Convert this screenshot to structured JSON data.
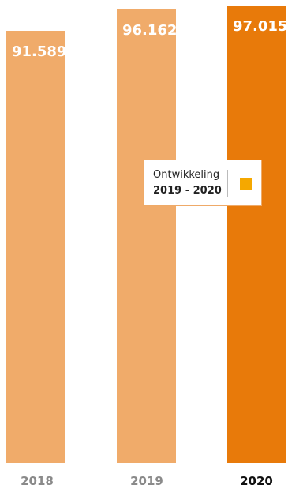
{
  "chart_data": {
    "type": "bar",
    "categories": [
      "2018",
      "2019",
      "2020"
    ],
    "values": [
      91.589,
      96.162,
      97.015
    ],
    "value_labels": [
      "91.589",
      "96.162",
      "97.015"
    ],
    "bar_colors": [
      "#f0ab6a",
      "#f0ab6a",
      "#e87a0a"
    ],
    "highlight_category": "2020",
    "title": "",
    "xlabel": "",
    "ylabel": "",
    "ylim": [
      0,
      100
    ],
    "grid": false,
    "legend": {
      "placement": "center-right",
      "line1": "Ontwikkeling",
      "line2": "2019 - 2020",
      "swatch_color": "#f5a800"
    }
  }
}
